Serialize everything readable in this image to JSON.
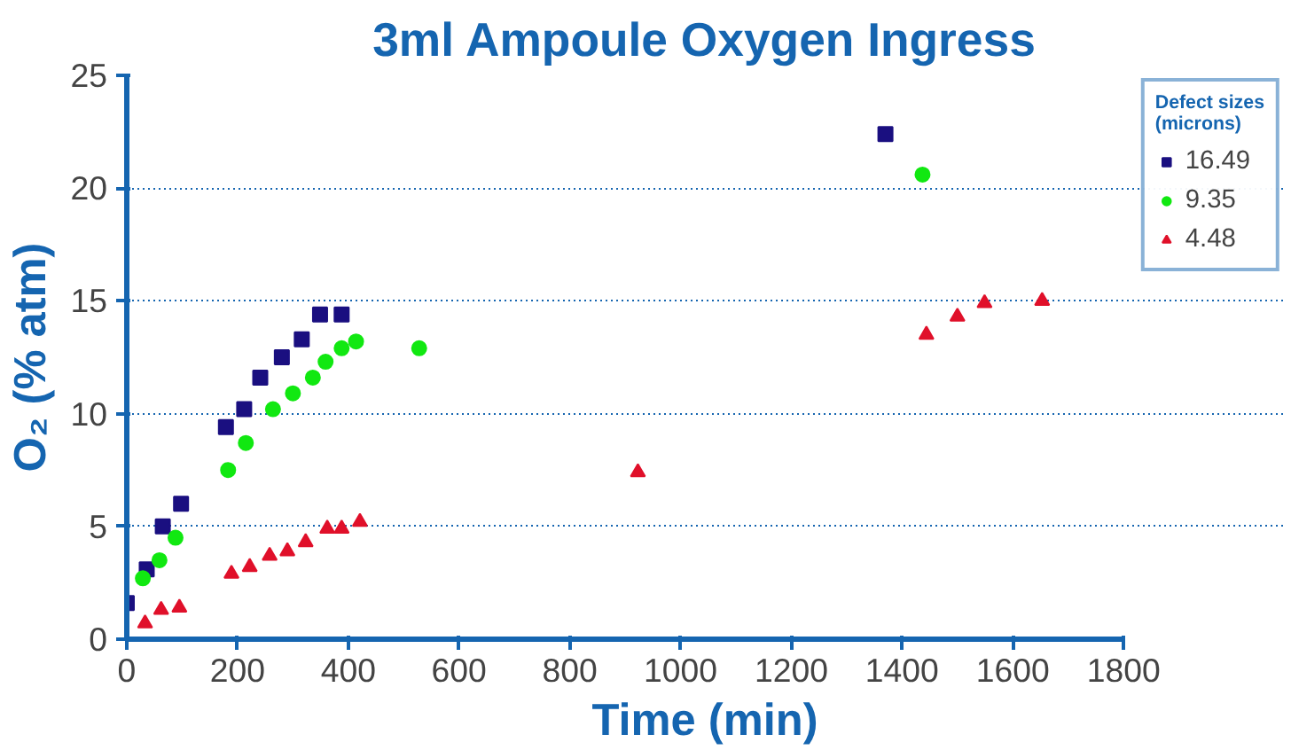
{
  "chart_data": {
    "type": "scatter",
    "title": "3ml Ampoule Oxygen Ingress",
    "xlabel": "Time (min)",
    "ylabel": "O₂ (% atm)",
    "legend_title": "Defect sizes\n(microns)",
    "legend": "right",
    "grid": "y",
    "xlim": [
      0,
      1800
    ],
    "xticks": [
      0,
      200,
      400,
      600,
      800,
      1000,
      1200,
      1400,
      1600,
      1800
    ],
    "ylim": [
      0,
      25
    ],
    "yticks": [
      0,
      5,
      10,
      15,
      20,
      25
    ],
    "series": [
      {
        "name": "16.49",
        "color": "#1a0f80",
        "marker": "square",
        "x": [
          0,
          36,
          65,
          98,
          179,
          212,
          241,
          280,
          316,
          349,
          388,
          1370
        ],
        "values": [
          1.6,
          3.1,
          5.0,
          6.0,
          9.4,
          10.2,
          11.6,
          12.5,
          13.3,
          14.4,
          14.4,
          22.4
        ]
      },
      {
        "name": "9.35",
        "color": "#11e811",
        "marker": "circle",
        "x": [
          29,
          59,
          88,
          183,
          215,
          264,
          300,
          336,
          359,
          388,
          414,
          528,
          1437
        ],
        "values": [
          2.7,
          3.5,
          4.5,
          7.5,
          8.7,
          10.2,
          10.9,
          11.6,
          12.3,
          12.9,
          13.2,
          12.9,
          20.6
        ]
      },
      {
        "name": "4.48",
        "color": "#e0102a",
        "marker": "triangle",
        "x": [
          33,
          62,
          95,
          189,
          222,
          258,
          290,
          323,
          362,
          388,
          421,
          923,
          1444,
          1500,
          1549,
          1653
        ],
        "values": [
          0.7,
          1.3,
          1.4,
          2.9,
          3.2,
          3.7,
          3.9,
          4.3,
          4.9,
          4.9,
          5.2,
          7.4,
          13.5,
          14.3,
          14.9,
          15.0
        ]
      }
    ]
  }
}
